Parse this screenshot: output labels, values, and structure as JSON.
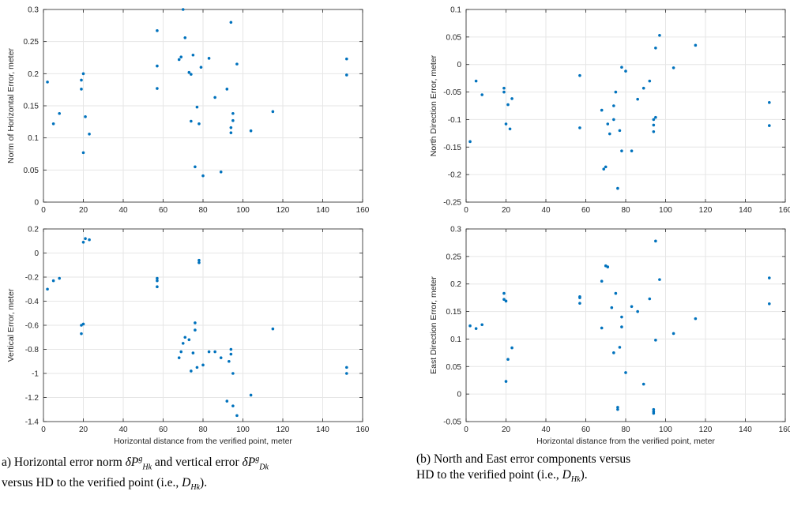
{
  "chart_data": [
    {
      "id": "hnorm",
      "type": "scatter",
      "xlabel": "",
      "ylabel": "Norm of Horizontal Error, meter",
      "xlim": [
        0,
        160
      ],
      "ylim": [
        0,
        0.3
      ],
      "xticks": [
        0,
        20,
        40,
        60,
        80,
        100,
        120,
        140,
        160
      ],
      "yticks": [
        0,
        0.05,
        0.1,
        0.15,
        0.2,
        0.25,
        0.3
      ],
      "grid": true,
      "color": "#0072BD",
      "points": [
        [
          2,
          0.187
        ],
        [
          5,
          0.122
        ],
        [
          8,
          0.138
        ],
        [
          19,
          0.176
        ],
        [
          19,
          0.19
        ],
        [
          20,
          0.2
        ],
        [
          20,
          0.077
        ],
        [
          21,
          0.133
        ],
        [
          23,
          0.106
        ],
        [
          57,
          0.267
        ],
        [
          57,
          0.212
        ],
        [
          57,
          0.177
        ],
        [
          68,
          0.222
        ],
        [
          69,
          0.226
        ],
        [
          70,
          0.3
        ],
        [
          71,
          0.256
        ],
        [
          73,
          0.202
        ],
        [
          74,
          0.126
        ],
        [
          74,
          0.199
        ],
        [
          75,
          0.229
        ],
        [
          76,
          0.055
        ],
        [
          77,
          0.148
        ],
        [
          78,
          0.122
        ],
        [
          79,
          0.21
        ],
        [
          80,
          0.041
        ],
        [
          83,
          0.224
        ],
        [
          86,
          0.163
        ],
        [
          89,
          0.047
        ],
        [
          92,
          0.176
        ],
        [
          94,
          0.28
        ],
        [
          94,
          0.116
        ],
        [
          94,
          0.108
        ],
        [
          95,
          0.127
        ],
        [
          95,
          0.138
        ],
        [
          97,
          0.215
        ],
        [
          104,
          0.111
        ],
        [
          115,
          0.141
        ],
        [
          152,
          0.223
        ],
        [
          152,
          0.198
        ]
      ]
    },
    {
      "id": "vert",
      "type": "scatter",
      "xlabel": "Horizontal distance from the verified point, meter",
      "ylabel": "Vertical Error, meter",
      "xlim": [
        0,
        160
      ],
      "ylim": [
        -1.4,
        0.2
      ],
      "xticks": [
        0,
        20,
        40,
        60,
        80,
        100,
        120,
        140,
        160
      ],
      "yticks": [
        -1.4,
        -1.2,
        -1,
        -0.8,
        -0.6,
        -0.4,
        -0.2,
        0,
        0.2
      ],
      "grid": true,
      "color": "#0072BD",
      "points": [
        [
          2,
          -0.3
        ],
        [
          5,
          -0.23
        ],
        [
          8,
          -0.21
        ],
        [
          19,
          -0.67
        ],
        [
          19,
          -0.6
        ],
        [
          20,
          -0.59
        ],
        [
          20,
          0.09
        ],
        [
          21,
          0.12
        ],
        [
          23,
          0.11
        ],
        [
          57,
          -0.21
        ],
        [
          57,
          -0.23
        ],
        [
          57,
          -0.28
        ],
        [
          68,
          -0.87
        ],
        [
          69,
          -0.82
        ],
        [
          70,
          -0.75
        ],
        [
          71,
          -0.7
        ],
        [
          73,
          -0.72
        ],
        [
          74,
          -0.98
        ],
        [
          75,
          -0.83
        ],
        [
          76,
          -0.64
        ],
        [
          76,
          -0.58
        ],
        [
          77,
          -0.95
        ],
        [
          78,
          -0.06
        ],
        [
          78,
          -0.08
        ],
        [
          80,
          -0.93
        ],
        [
          83,
          -0.82
        ],
        [
          86,
          -0.82
        ],
        [
          89,
          -0.87
        ],
        [
          92,
          -1.23
        ],
        [
          93,
          -0.9
        ],
        [
          94,
          -0.8
        ],
        [
          94,
          -0.84
        ],
        [
          95,
          -1.0
        ],
        [
          95,
          -1.27
        ],
        [
          97,
          -1.35
        ],
        [
          104,
          -1.18
        ],
        [
          115,
          -0.63
        ],
        [
          152,
          -0.95
        ],
        [
          152,
          -1.0
        ]
      ]
    },
    {
      "id": "north",
      "type": "scatter",
      "xlabel": "",
      "ylabel": "North Direction Error, meter",
      "xlim": [
        0,
        160
      ],
      "ylim": [
        -0.25,
        0.1
      ],
      "xticks": [
        0,
        20,
        40,
        60,
        80,
        100,
        120,
        140,
        160
      ],
      "yticks": [
        -0.25,
        -0.2,
        -0.15,
        -0.1,
        -0.05,
        0,
        0.05,
        0.1
      ],
      "grid": true,
      "color": "#0072BD",
      "points": [
        [
          2,
          -0.14
        ],
        [
          5,
          -0.03
        ],
        [
          8,
          -0.055
        ],
        [
          19,
          -0.043
        ],
        [
          19,
          -0.05
        ],
        [
          20,
          -0.108
        ],
        [
          21,
          -0.073
        ],
        [
          22,
          -0.117
        ],
        [
          23,
          -0.062
        ],
        [
          57,
          -0.02
        ],
        [
          57,
          -0.115
        ],
        [
          68,
          -0.083
        ],
        [
          69,
          -0.19
        ],
        [
          70,
          -0.186
        ],
        [
          71,
          -0.108
        ],
        [
          72,
          -0.126
        ],
        [
          74,
          -0.1
        ],
        [
          74,
          -0.075
        ],
        [
          75,
          -0.05
        ],
        [
          76,
          -0.225
        ],
        [
          77,
          -0.12
        ],
        [
          78,
          -0.157
        ],
        [
          78,
          -0.005
        ],
        [
          80,
          -0.012
        ],
        [
          83,
          -0.157
        ],
        [
          86,
          -0.063
        ],
        [
          89,
          -0.043
        ],
        [
          92,
          -0.03
        ],
        [
          94,
          -0.1
        ],
        [
          94,
          -0.11
        ],
        [
          94,
          -0.122
        ],
        [
          95,
          0.03
        ],
        [
          95,
          -0.096
        ],
        [
          97,
          0.053
        ],
        [
          104,
          -0.006
        ],
        [
          115,
          0.035
        ],
        [
          152,
          -0.069
        ],
        [
          152,
          -0.111
        ]
      ]
    },
    {
      "id": "east",
      "type": "scatter",
      "xlabel": "Horizontal distance from the verified point, meter",
      "ylabel": "East Direction Error, meter",
      "xlim": [
        0,
        160
      ],
      "ylim": [
        -0.05,
        0.3
      ],
      "xticks": [
        0,
        20,
        40,
        60,
        80,
        100,
        120,
        140,
        160
      ],
      "yticks": [
        -0.05,
        0,
        0.05,
        0.1,
        0.15,
        0.2,
        0.25,
        0.3
      ],
      "grid": true,
      "color": "#0072BD",
      "points": [
        [
          2,
          0.124
        ],
        [
          5,
          0.119
        ],
        [
          8,
          0.126
        ],
        [
          19,
          0.183
        ],
        [
          19,
          0.172
        ],
        [
          20,
          0.169
        ],
        [
          20,
          0.023
        ],
        [
          21,
          0.063
        ],
        [
          23,
          0.084
        ],
        [
          57,
          0.177
        ],
        [
          57,
          0.175
        ],
        [
          57,
          0.165
        ],
        [
          68,
          0.205
        ],
        [
          68,
          0.12
        ],
        [
          70,
          0.233
        ],
        [
          71,
          0.231
        ],
        [
          73,
          0.157
        ],
        [
          74,
          0.075
        ],
        [
          75,
          0.183
        ],
        [
          76,
          -0.024
        ],
        [
          76,
          -0.028
        ],
        [
          77,
          0.085
        ],
        [
          78,
          0.14
        ],
        [
          78,
          0.122
        ],
        [
          80,
          0.039
        ],
        [
          83,
          0.159
        ],
        [
          86,
          0.15
        ],
        [
          89,
          0.018
        ],
        [
          92,
          0.173
        ],
        [
          94,
          -0.028
        ],
        [
          94,
          -0.032
        ],
        [
          94,
          -0.035
        ],
        [
          95,
          0.278
        ],
        [
          95,
          0.098
        ],
        [
          97,
          0.208
        ],
        [
          104,
          0.11
        ],
        [
          115,
          0.137
        ],
        [
          152,
          0.211
        ],
        [
          152,
          0.164
        ]
      ]
    }
  ],
  "captions": {
    "left": {
      "line1_start": "a) Horizontal error norm ",
      "delta": "δ",
      "var_P": "P",
      "sup_g": "g",
      "sub_Hk": "H",
      "sub_k": "k",
      "line1_mid": " and vertical error ",
      "sub_Dk": "D",
      "line2": "versus HD to the verified point (i.e., ",
      "line2_var": "D",
      "line2_end": ")."
    },
    "right": {
      "line1": "(b) North and East error components versus",
      "line2_start": "HD to the verified point (i.e., ",
      "line2_var": "D",
      "line2_sub_H": "H",
      "line2_sub_k": "k",
      "line2_end": ")."
    }
  }
}
